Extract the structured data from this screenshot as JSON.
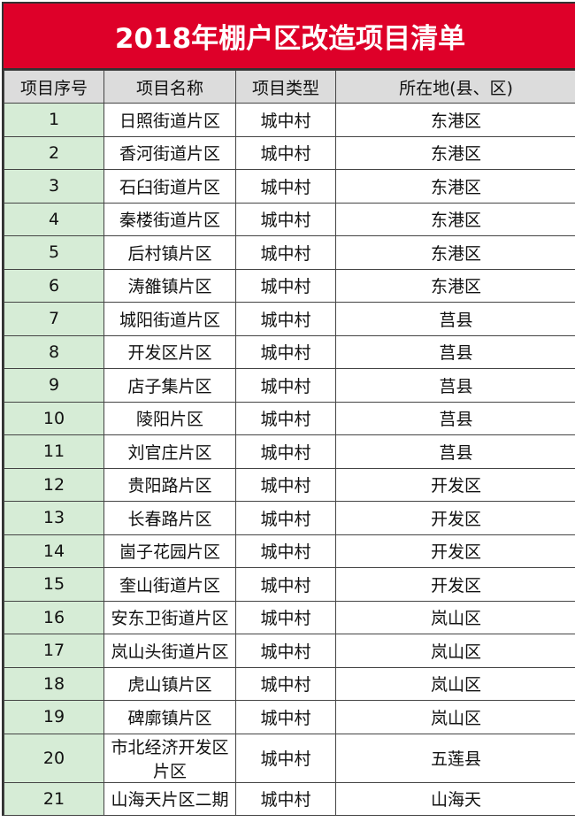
{
  "title": "2018年棚户区改造项目清单",
  "colors": {
    "title_bg": "#de0029",
    "header_bg": "#dcdcdc",
    "index_bg": "#d6ecd6"
  },
  "headers": [
    "项目序号",
    "项目名称",
    "项目类型",
    "所在地(县、区)"
  ],
  "rows": [
    [
      "1",
      "日照街道片区",
      "城中村",
      "东港区"
    ],
    [
      "2",
      "香河街道片区",
      "城中村",
      "东港区"
    ],
    [
      "3",
      "石臼街道片区",
      "城中村",
      "东港区"
    ],
    [
      "4",
      "秦楼街道片区",
      "城中村",
      "东港区"
    ],
    [
      "5",
      "后村镇片区",
      "城中村",
      "东港区"
    ],
    [
      "6",
      "涛雒镇片区",
      "城中村",
      "东港区"
    ],
    [
      "7",
      "城阳街道片区",
      "城中村",
      "莒县"
    ],
    [
      "8",
      "开发区片区",
      "城中村",
      "莒县"
    ],
    [
      "9",
      "店子集片区",
      "城中村",
      "莒县"
    ],
    [
      "10",
      "陵阳片区",
      "城中村",
      "莒县"
    ],
    [
      "11",
      "刘官庄片区",
      "城中村",
      "莒县"
    ],
    [
      "12",
      "贵阳路片区",
      "城中村",
      "开发区"
    ],
    [
      "13",
      "长春路片区",
      "城中村",
      "开发区"
    ],
    [
      "14",
      "崮子花园片区",
      "城中村",
      "开发区"
    ],
    [
      "15",
      "奎山街道片区",
      "城中村",
      "开发区"
    ],
    [
      "16",
      "安东卫街道片区",
      "城中村",
      "岚山区"
    ],
    [
      "17",
      "岚山头街道片区",
      "城中村",
      "岚山区"
    ],
    [
      "18",
      "虎山镇片区",
      "城中村",
      "岚山区"
    ],
    [
      "19",
      "碑廓镇片区",
      "城中村",
      "岚山区"
    ],
    [
      "20",
      "市北经济开发区片区",
      "城中村",
      "五莲县"
    ],
    [
      "21",
      "山海天片区二期",
      "城中村",
      "山海天"
    ]
  ]
}
